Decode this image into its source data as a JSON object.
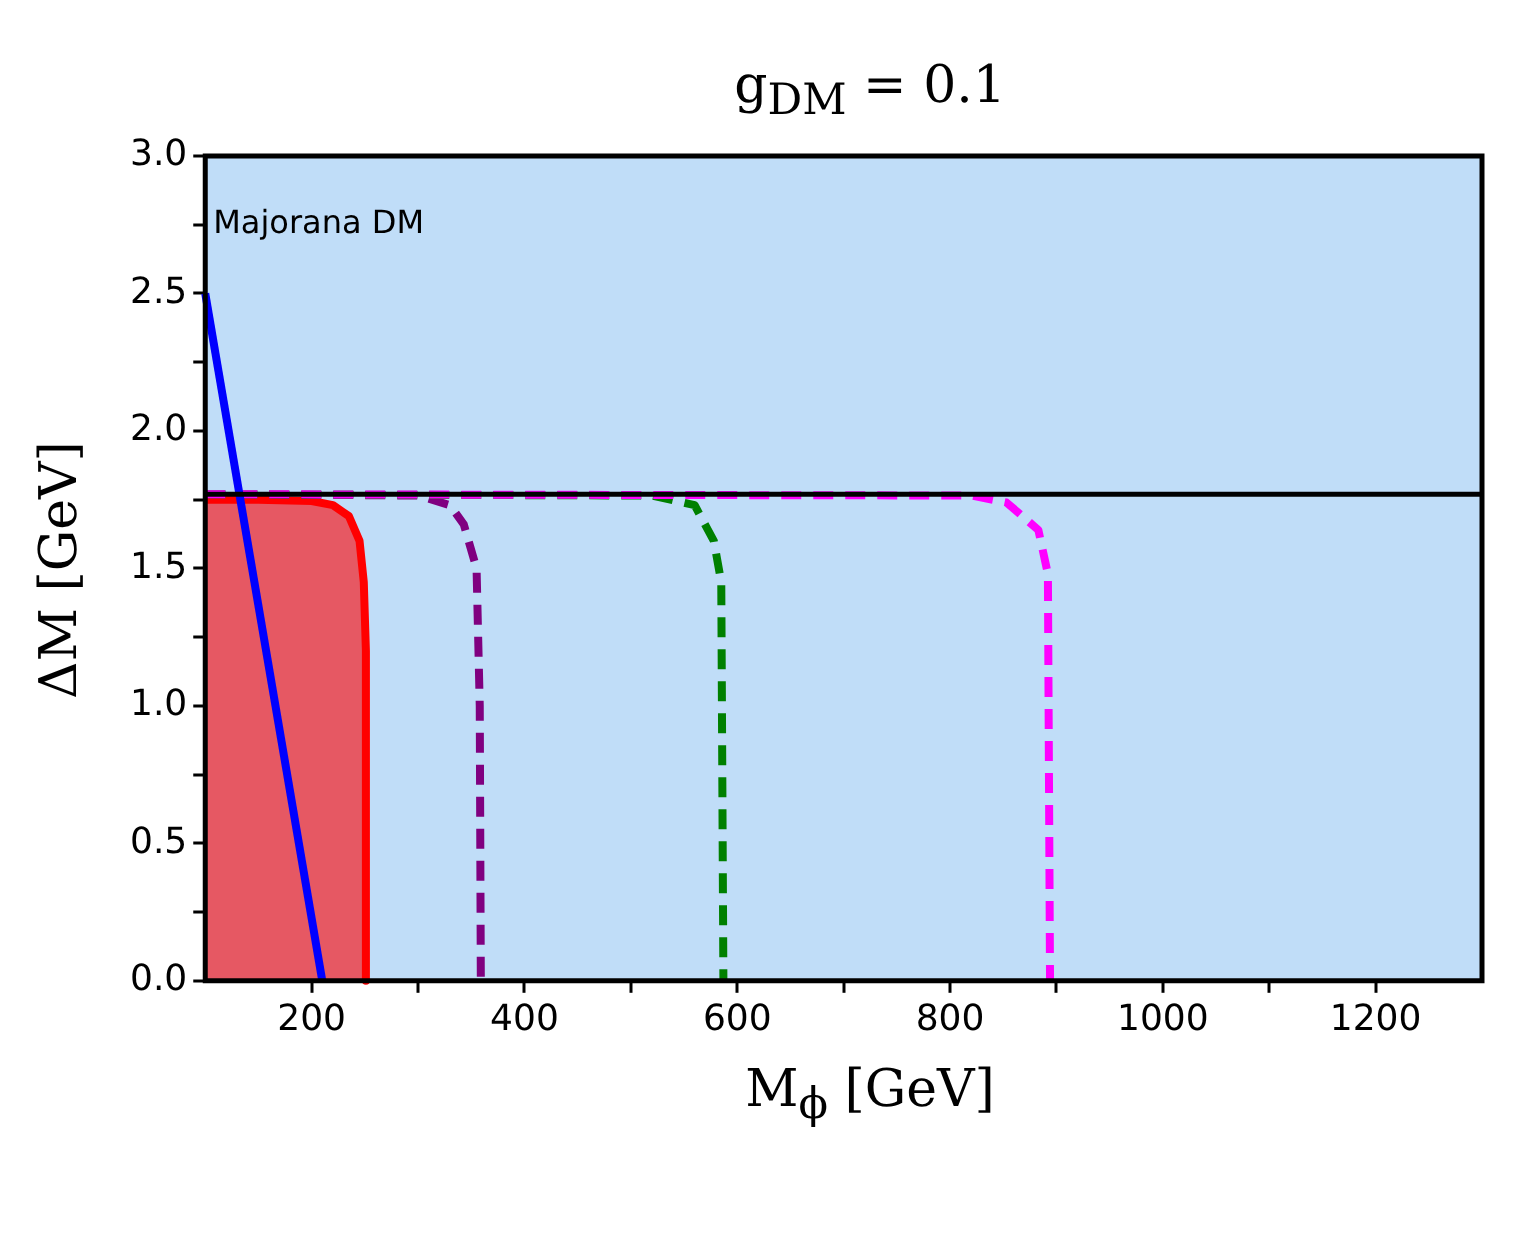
{
  "chart_data": {
    "type": "line",
    "title": "g$_{DM}$ = 0.1",
    "xlabel": "M$_{ϕ}$ [GeV]",
    "ylabel": "ΔM [GeV]",
    "xlim": [
      100,
      1300
    ],
    "ylim": [
      0,
      3
    ],
    "xticks": [
      {
        "value": 200,
        "label": "200"
      },
      {
        "value": 300,
        "label": null
      },
      {
        "value": 400,
        "label": "400"
      },
      {
        "value": 500,
        "label": null
      },
      {
        "value": 600,
        "label": "600"
      },
      {
        "value": 700,
        "label": null
      },
      {
        "value": 800,
        "label": "800"
      },
      {
        "value": 900,
        "label": null
      },
      {
        "value": 1000,
        "label": "1000"
      },
      {
        "value": 1100,
        "label": null
      },
      {
        "value": 1200,
        "label": "1200"
      }
    ],
    "yticks": [
      {
        "value": 0,
        "label": "0.0"
      },
      {
        "value": 0.25,
        "label": null
      },
      {
        "value": 0.5,
        "label": "0.5"
      },
      {
        "value": 0.75,
        "label": null
      },
      {
        "value": 1,
        "label": "1.0"
      },
      {
        "value": 1.25,
        "label": null
      },
      {
        "value": 1.5,
        "label": "1.5"
      },
      {
        "value": 1.75,
        "label": null
      },
      {
        "value": 2,
        "label": "2.0"
      },
      {
        "value": 2.25,
        "label": null
      },
      {
        "value": 2.5,
        "label": "2.5"
      },
      {
        "value": 2.75,
        "label": null
      },
      {
        "value": 3,
        "label": "3.0"
      }
    ],
    "grid": false,
    "legend": false,
    "bands": [
      {
        "axis": "x",
        "from": 100,
        "to": 1300,
        "color": "#c0ddf8"
      }
    ],
    "ref_lines": [
      {
        "axis": "y",
        "value": 1.77,
        "color": "#000000"
      }
    ],
    "annotations": [
      {
        "text": "Majorana DM",
        "x": 100,
        "y": 2.75
      }
    ],
    "series": [
      {
        "type": "area",
        "color": "#ff0000",
        "line_style": "solid",
        "x": [
          100,
          150,
          200,
          220,
          235,
          245,
          249,
          251,
          251
        ],
        "values": [
          1.75,
          1.75,
          1.745,
          1.73,
          1.69,
          1.6,
          1.45,
          1.2,
          0
        ]
      },
      {
        "type": "line",
        "color": "#800080",
        "line_style": "dashed",
        "x": [
          100,
          300,
          330,
          343,
          355,
          358,
          359
        ],
        "values": [
          1.77,
          1.765,
          1.73,
          1.66,
          1.5,
          1.0,
          0
        ]
      },
      {
        "type": "line",
        "color": "#008000",
        "line_style": "dashed",
        "x": [
          100,
          520,
          560,
          578,
          585,
          587
        ],
        "values": [
          1.77,
          1.765,
          1.73,
          1.6,
          1.45,
          0
        ]
      },
      {
        "type": "line",
        "color": "#ff00ff",
        "line_style": "dashed",
        "x": [
          100,
          820,
          853,
          883,
          892,
          894
        ],
        "values": [
          1.77,
          1.765,
          1.74,
          1.64,
          1.48,
          0
        ]
      },
      {
        "type": "line",
        "color": "#0000ff",
        "line_style": "solid",
        "x": [
          100,
          210
        ],
        "values": [
          2.5,
          0
        ]
      }
    ]
  }
}
